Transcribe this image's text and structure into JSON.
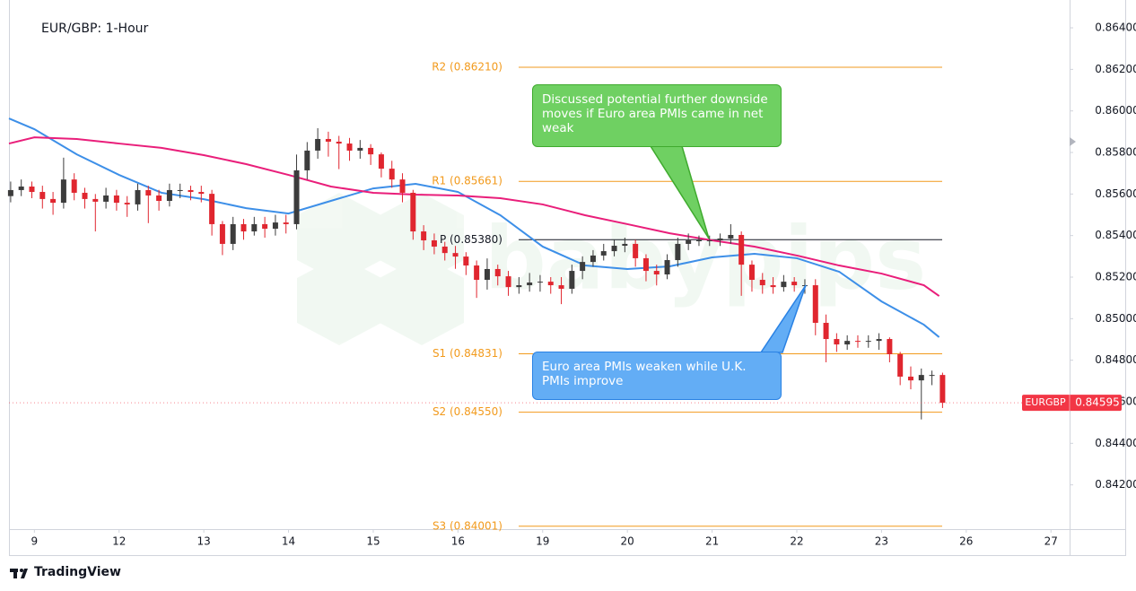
{
  "chart_data": {
    "type": "candlestick",
    "title": "EUR/GBP: 1-Hour",
    "watermark": "babypips",
    "footer": "TradingView",
    "xlim": [
      -0.3,
      12.22
    ],
    "xticks": [
      {
        "value": 0,
        "label": "9"
      },
      {
        "value": 1,
        "label": "12"
      },
      {
        "value": 2,
        "label": "13"
      },
      {
        "value": 3,
        "label": "14"
      },
      {
        "value": 4,
        "label": "15"
      },
      {
        "value": 5,
        "label": "16"
      },
      {
        "value": 6,
        "label": "19"
      },
      {
        "value": 7,
        "label": "20"
      },
      {
        "value": 8,
        "label": "21"
      },
      {
        "value": 9,
        "label": "22"
      },
      {
        "value": 10,
        "label": "23"
      },
      {
        "value": 11,
        "label": "26"
      },
      {
        "value": 12,
        "label": "27"
      }
    ],
    "ylim": [
      0.83987,
      0.86521
    ],
    "yticks": [
      {
        "value": 0.842,
        "label": "0.84200"
      },
      {
        "value": 0.844,
        "label": "0.84400"
      },
      {
        "value": 0.846,
        "label": "0.84600"
      },
      {
        "value": 0.848,
        "label": "0.84800"
      },
      {
        "value": 0.85,
        "label": "0.85000"
      },
      {
        "value": 0.852,
        "label": "0.85200"
      },
      {
        "value": 0.854,
        "label": "0.85400"
      },
      {
        "value": 0.856,
        "label": "0.85600"
      },
      {
        "value": 0.858,
        "label": "0.85800"
      },
      {
        "value": 0.86,
        "label": "0.86000"
      },
      {
        "value": 0.862,
        "label": "0.86200"
      },
      {
        "value": 0.864,
        "label": "0.86400"
      }
    ],
    "up_color": "#3c3c3c",
    "down_color": "#e0262f",
    "candles": {
      "x": [
        -0.28,
        -0.155,
        -0.03,
        0.095,
        0.22,
        0.345,
        0.47,
        0.595,
        0.72,
        0.845,
        0.97,
        1.095,
        1.22,
        1.345,
        1.47,
        1.595,
        1.72,
        1.845,
        1.97,
        2.095,
        2.22,
        2.345,
        2.47,
        2.595,
        2.72,
        2.845,
        2.97,
        3.095,
        3.22,
        3.345,
        3.47,
        3.595,
        3.72,
        3.845,
        3.97,
        4.095,
        4.22,
        4.345,
        4.47,
        4.595,
        4.72,
        4.845,
        4.97,
        5.095,
        5.22,
        5.345,
        5.47,
        5.595,
        5.72,
        5.845,
        5.97,
        6.095,
        6.22,
        6.345,
        6.47,
        6.595,
        6.72,
        6.845,
        6.97,
        7.095,
        7.22,
        7.345,
        7.47,
        7.595,
        7.72,
        7.845,
        7.97,
        8.095,
        8.22,
        8.345,
        8.47,
        8.595,
        8.72,
        8.845,
        8.97,
        9.095,
        9.22,
        9.345,
        9.47,
        9.595,
        9.72,
        9.845,
        9.97,
        10.095,
        10.22,
        10.345,
        10.47,
        10.595,
        10.72
      ],
      "open": [
        0.8559,
        0.85619,
        0.85636,
        0.8561,
        0.85576,
        0.85558,
        0.8567,
        0.85606,
        0.85576,
        0.85563,
        0.85593,
        0.85558,
        0.8555,
        0.85619,
        0.85593,
        0.85567,
        0.85619,
        0.85619,
        0.8561,
        0.85601,
        0.85455,
        0.8536,
        0.85455,
        0.8542,
        0.85455,
        0.85433,
        0.85463,
        0.85455,
        0.85714,
        0.85809,
        0.85865,
        0.85852,
        0.85843,
        0.85809,
        0.85822,
        0.85791,
        0.85722,
        0.8567,
        0.85606,
        0.8542,
        0.85377,
        0.85347,
        0.85316,
        0.85299,
        0.85256,
        0.85187,
        0.85239,
        0.85204,
        0.85152,
        0.85161,
        0.85174,
        0.85178,
        0.85161,
        0.85144,
        0.8523,
        0.85273,
        0.85304,
        0.85325,
        0.85351,
        0.8536,
        0.85291,
        0.8523,
        0.85213,
        0.85282,
        0.8536,
        0.85377,
        0.85377,
        0.85377,
        0.85386,
        0.85403,
        0.8526,
        0.85187,
        0.85161,
        0.85152,
        0.85178,
        0.85161,
        0.85161,
        0.8498,
        0.84902,
        0.84876,
        0.84893,
        0.84889,
        0.84893,
        0.84902,
        0.84829,
        0.84721,
        0.84703,
        0.84729,
        0.84729
      ],
      "high": [
        0.8566,
        0.8567,
        0.8566,
        0.8564,
        0.8561,
        0.85775,
        0.857,
        0.8563,
        0.856,
        0.8563,
        0.8562,
        0.8559,
        0.8565,
        0.8564,
        0.8562,
        0.8565,
        0.8565,
        0.8564,
        0.8564,
        0.8562,
        0.8547,
        0.8549,
        0.8548,
        0.8549,
        0.8549,
        0.855,
        0.855,
        0.8579,
        0.8585,
        0.85917,
        0.859,
        0.8588,
        0.8587,
        0.8586,
        0.8584,
        0.858,
        0.8576,
        0.857,
        0.8562,
        0.8545,
        0.8541,
        0.8537,
        0.8535,
        0.8532,
        0.8528,
        0.8529,
        0.8526,
        0.8523,
        0.852,
        0.8522,
        0.8521,
        0.852,
        0.852,
        0.8526,
        0.853,
        0.8533,
        0.8536,
        0.8538,
        0.8539,
        0.8538,
        0.8531,
        0.8526,
        0.8531,
        0.8539,
        0.8541,
        0.854,
        0.854,
        0.8541,
        0.85455,
        0.8542,
        0.8528,
        0.8522,
        0.852,
        0.8521,
        0.852,
        0.8519,
        0.8519,
        0.8502,
        0.8493,
        0.8492,
        0.8492,
        0.8492,
        0.8493,
        0.8491,
        0.8484,
        0.8477,
        0.8476,
        0.8475,
        0.8474
      ],
      "low": [
        0.8556,
        0.8559,
        0.8558,
        0.8553,
        0.855,
        0.8553,
        0.8557,
        0.8553,
        0.8542,
        0.8553,
        0.8552,
        0.8549,
        0.8552,
        0.8546,
        0.8552,
        0.8554,
        0.8558,
        0.8557,
        0.8556,
        0.854,
        0.85306,
        0.8533,
        0.8538,
        0.854,
        0.8539,
        0.854,
        0.8541,
        0.8543,
        0.8567,
        0.8577,
        0.8578,
        0.8572,
        0.8576,
        0.8577,
        0.8574,
        0.8568,
        0.8563,
        0.8556,
        0.8538,
        0.8533,
        0.8531,
        0.8528,
        0.8524,
        0.8521,
        0.851,
        0.8514,
        0.8516,
        0.8511,
        0.8512,
        0.8513,
        0.8513,
        0.8512,
        0.8507,
        0.8512,
        0.8519,
        0.8525,
        0.8528,
        0.853,
        0.8532,
        0.8525,
        0.8518,
        0.8516,
        0.8519,
        0.8525,
        0.8533,
        0.8535,
        0.8535,
        0.8535,
        0.8536,
        0.8511,
        0.8513,
        0.8512,
        0.8512,
        0.8513,
        0.8513,
        0.8512,
        0.8492,
        0.8479,
        0.8484,
        0.8485,
        0.8486,
        0.8486,
        0.8485,
        0.8479,
        0.8468,
        0.8466,
        0.84515,
        0.8468,
        0.8457
      ],
      "close": [
        0.85619,
        0.85636,
        0.8561,
        0.85576,
        0.85558,
        0.8567,
        0.85606,
        0.85576,
        0.85563,
        0.85593,
        0.85558,
        0.8555,
        0.85619,
        0.85593,
        0.85567,
        0.85619,
        0.85619,
        0.8561,
        0.85601,
        0.85455,
        0.8536,
        0.85455,
        0.8542,
        0.85455,
        0.85433,
        0.85463,
        0.85455,
        0.85714,
        0.85809,
        0.85865,
        0.85852,
        0.85843,
        0.85809,
        0.85822,
        0.85791,
        0.85722,
        0.8567,
        0.85606,
        0.8542,
        0.85377,
        0.85347,
        0.85316,
        0.85299,
        0.85256,
        0.85187,
        0.85239,
        0.85204,
        0.85152,
        0.85161,
        0.85174,
        0.85178,
        0.85161,
        0.85144,
        0.8523,
        0.85273,
        0.85304,
        0.85325,
        0.85351,
        0.8536,
        0.85291,
        0.8523,
        0.85213,
        0.85282,
        0.8536,
        0.85377,
        0.85377,
        0.85377,
        0.85386,
        0.85403,
        0.8526,
        0.85187,
        0.85161,
        0.85152,
        0.85178,
        0.85161,
        0.85161,
        0.8498,
        0.84902,
        0.84876,
        0.84893,
        0.84889,
        0.84893,
        0.84902,
        0.84829,
        0.84721,
        0.84703,
        0.84729,
        0.84729,
        0.84595
      ]
    },
    "lines": [
      {
        "color": "#3d8fe8",
        "x": [
          -0.3,
          0,
          0.5,
          1,
          1.5,
          2,
          2.5,
          3,
          3.5,
          4,
          4.5,
          5,
          5.5,
          6,
          6.5,
          7,
          7.5,
          8,
          8.5,
          9,
          9.5,
          10,
          10.5,
          10.68
        ],
        "values": [
          0.85964,
          0.85912,
          0.85791,
          0.85692,
          0.85606,
          0.85575,
          0.85532,
          0.85506,
          0.85567,
          0.85627,
          0.85649,
          0.8561,
          0.85498,
          0.85347,
          0.85256,
          0.85239,
          0.85252,
          0.85295,
          0.85312,
          0.85291,
          0.85226,
          0.85083,
          0.84971,
          0.84911
        ]
      },
      {
        "color": "#e91e7a",
        "x": [
          -0.3,
          0,
          0.5,
          1,
          1.5,
          2,
          2.5,
          3,
          3.5,
          4,
          4.5,
          5,
          5.5,
          6,
          6.5,
          7,
          7.5,
          8,
          8.5,
          9,
          9.5,
          10,
          10.5,
          10.68
        ],
        "values": [
          0.85843,
          0.85873,
          0.85865,
          0.85843,
          0.85822,
          0.85787,
          0.85744,
          0.85692,
          0.85636,
          0.85606,
          0.85597,
          0.85593,
          0.8558,
          0.8555,
          0.85498,
          0.85455,
          0.85411,
          0.85377,
          0.85347,
          0.85304,
          0.85256,
          0.85217,
          0.85161,
          0.85109
        ]
      }
    ],
    "levels": [
      {
        "label": "R2 (0.86210)",
        "value": 0.8621,
        "color": "#f29a1c"
      },
      {
        "label": "R1 (0.85661)",
        "value": 0.85661,
        "color": "#f29a1c"
      },
      {
        "label": "P (0.85380)",
        "value": 0.8538,
        "color": "#131722"
      },
      {
        "label": "S1 (0.84831)",
        "value": 0.84831,
        "color": "#f29a1c"
      },
      {
        "label": "S2 (0.84550)",
        "value": 0.8455,
        "color": "#f29a1c"
      },
      {
        "label": "S3 (0.84001)",
        "value": 0.84001,
        "color": "#f29a1c"
      }
    ],
    "annotations": [
      {
        "text": "Discussed potential further downside moves if Euro area PMIs came in net weak",
        "color": "#6fd062",
        "border": "#3faa2e"
      },
      {
        "text": "Euro area PMIs weaken while U.K. PMIs improve",
        "color": "#63adf5",
        "border": "#2a82e4"
      }
    ],
    "last_price": {
      "name": "EURGBP",
      "value": 0.84595,
      "label": "0.84595",
      "color": "#f23645"
    }
  }
}
